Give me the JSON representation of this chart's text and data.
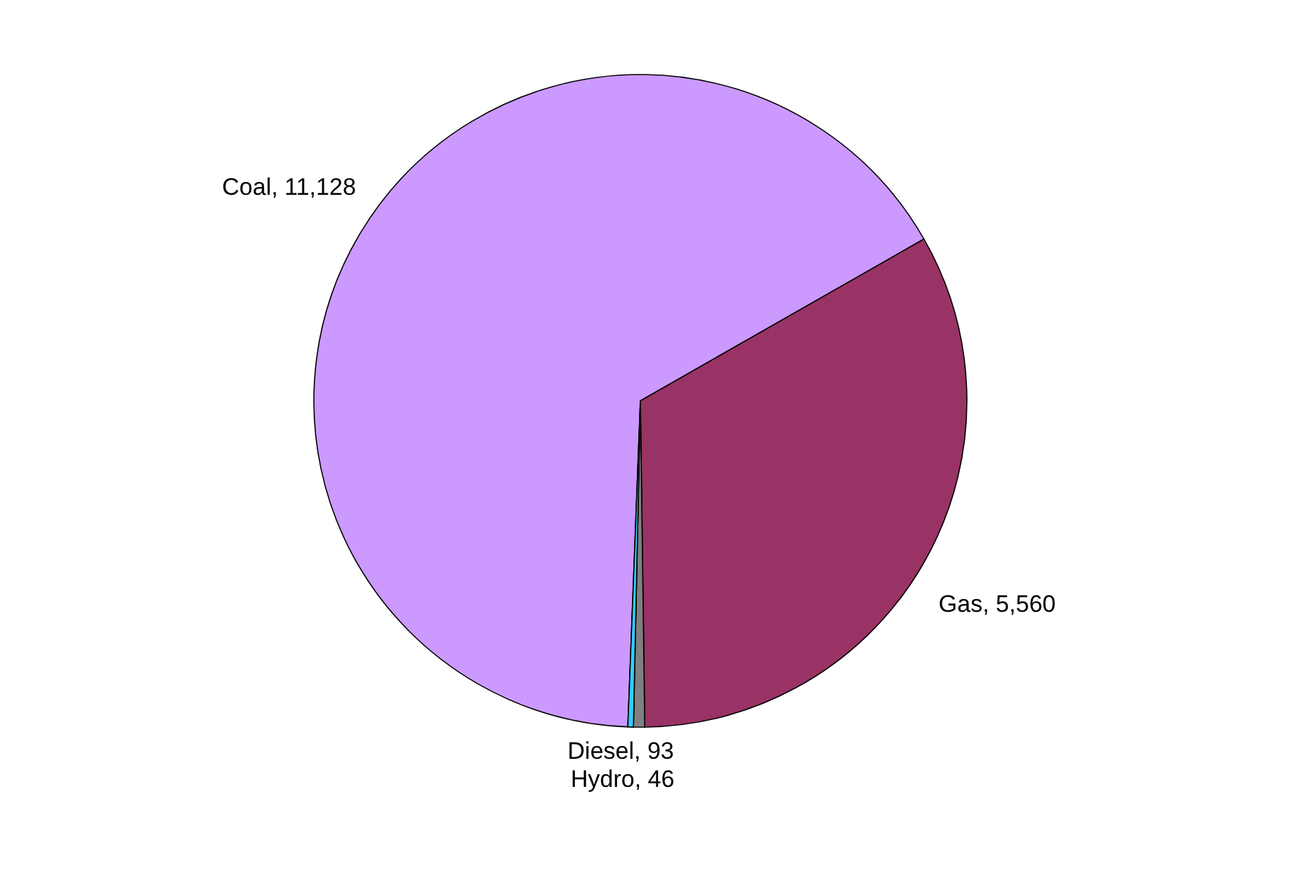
{
  "chart_data": {
    "type": "pie",
    "categories": [
      "Coal",
      "Gas",
      "Diesel",
      "Hydro"
    ],
    "values": [
      11128,
      5560,
      93,
      46
    ],
    "colors": [
      "#cc99ff",
      "#993366",
      "#808080",
      "#33ccff"
    ],
    "value_labels": [
      "11,128",
      "5,560",
      "93",
      "46"
    ]
  }
}
